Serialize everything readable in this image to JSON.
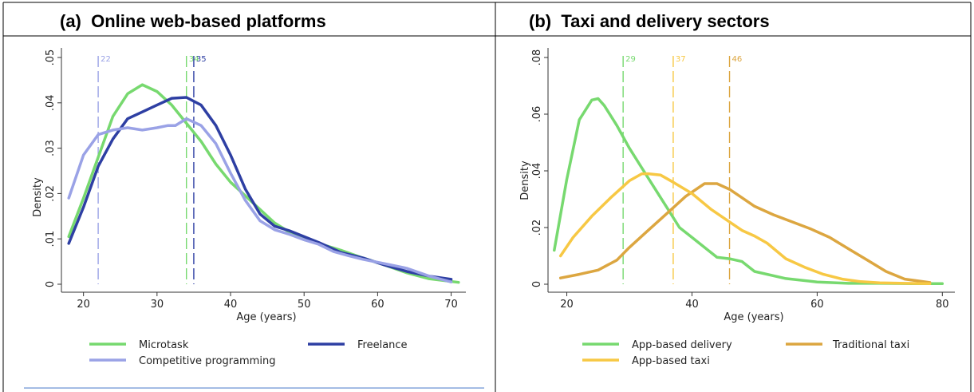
{
  "panels": [
    {
      "title": "(a)  Online web-based platforms"
    },
    {
      "title": "(b)  Taxi and delivery sectors"
    }
  ],
  "chart_data": [
    {
      "type": "line",
      "xlabel": "Age (years)",
      "ylabel": "Density",
      "xlim": [
        17,
        72
      ],
      "ylim": [
        0,
        0.05
      ],
      "xticks": [
        20,
        30,
        40,
        50,
        60,
        70
      ],
      "xtick_labels": [
        "20",
        "30",
        "40",
        "50",
        "60",
        "70"
      ],
      "yticks": [
        0,
        0.01,
        0.02,
        0.03,
        0.04,
        0.05
      ],
      "ytick_labels": [
        "0",
        ".01",
        ".02",
        ".03",
        ".04",
        ".05"
      ],
      "grid": false,
      "legend_position": "bottom",
      "series": [
        {
          "name": "Microtask",
          "color": "#77d96f",
          "x": [
            18,
            20,
            22,
            24,
            26,
            28,
            30,
            32,
            34,
            36,
            38,
            40,
            42,
            44,
            46,
            48,
            50,
            52,
            55,
            58,
            61,
            64,
            67,
            71
          ],
          "y": [
            0.0105,
            0.019,
            0.028,
            0.037,
            0.042,
            0.044,
            0.0425,
            0.0395,
            0.0355,
            0.0315,
            0.0265,
            0.0225,
            0.0195,
            0.0165,
            0.0135,
            0.0115,
            0.0098,
            0.009,
            0.0075,
            0.0058,
            0.0042,
            0.0025,
            0.0012,
            0.0004
          ]
        },
        {
          "name": "Freelance",
          "color": "#2e3fa3",
          "x": [
            18,
            20,
            22,
            24,
            26,
            28,
            30,
            32,
            34,
            36,
            38,
            40,
            42,
            44,
            46,
            48,
            50,
            52,
            55,
            58,
            61,
            64,
            67,
            70
          ],
          "y": [
            0.009,
            0.017,
            0.026,
            0.032,
            0.0365,
            0.038,
            0.0395,
            0.041,
            0.0412,
            0.0395,
            0.035,
            0.0285,
            0.021,
            0.0155,
            0.0128,
            0.0118,
            0.0105,
            0.0092,
            0.007,
            0.0058,
            0.0042,
            0.0028,
            0.0018,
            0.0011
          ]
        },
        {
          "name": "Competitive programming",
          "color": "#9aa2e6",
          "x": [
            18,
            20,
            22,
            24,
            26,
            28,
            30,
            31.5,
            32.5,
            34,
            36,
            38,
            40,
            42,
            44,
            46,
            48,
            50,
            52,
            54,
            56,
            58,
            61,
            64,
            67,
            70
          ],
          "y": [
            0.019,
            0.0285,
            0.033,
            0.034,
            0.0345,
            0.034,
            0.0345,
            0.035,
            0.035,
            0.0365,
            0.035,
            0.031,
            0.0245,
            0.0185,
            0.014,
            0.012,
            0.011,
            0.0098,
            0.0088,
            0.0072,
            0.0063,
            0.0055,
            0.0045,
            0.0035,
            0.0018,
            0.0005
          ]
        }
      ],
      "vlines": [
        {
          "x": 22,
          "label": "22",
          "color": "#9aa2e6"
        },
        {
          "x": 34,
          "label": "34",
          "color": "#77d96f"
        },
        {
          "x": 35,
          "label": "35",
          "color": "#2e3fa3"
        }
      ]
    },
    {
      "type": "line",
      "xlabel": "Age (years)",
      "ylabel": "Density",
      "xlim": [
        17,
        82
      ],
      "ylim": [
        0,
        0.08
      ],
      "xticks": [
        20,
        40,
        60,
        80
      ],
      "xtick_labels": [
        "20",
        "40",
        "60",
        "80"
      ],
      "yticks": [
        0,
        0.02,
        0.04,
        0.06,
        0.08
      ],
      "ytick_labels": [
        "0",
        ".02",
        ".04",
        ".06",
        ".08"
      ],
      "grid": false,
      "legend_position": "bottom",
      "series": [
        {
          "name": "App-based delivery",
          "color": "#77d96f",
          "x": [
            18,
            20,
            22,
            24,
            25,
            26,
            28,
            30,
            32,
            34,
            36,
            38,
            40,
            42,
            44,
            46,
            48,
            50,
            55,
            60,
            65,
            70,
            75,
            80
          ],
          "y": [
            0.012,
            0.037,
            0.058,
            0.065,
            0.0655,
            0.063,
            0.056,
            0.048,
            0.041,
            0.034,
            0.027,
            0.02,
            0.0165,
            0.013,
            0.0095,
            0.009,
            0.008,
            0.0045,
            0.002,
            0.0008,
            0.0003,
            0.0003,
            0.0002,
            0.0002
          ]
        },
        {
          "name": "Traditional taxi",
          "color": "#dca640",
          "x": [
            19,
            22,
            25,
            28,
            30,
            33,
            36,
            39,
            42,
            44,
            46,
            48,
            50,
            53,
            56,
            59,
            62,
            65,
            68,
            71,
            74,
            78
          ],
          "y": [
            0.0022,
            0.0035,
            0.005,
            0.0085,
            0.013,
            0.019,
            0.025,
            0.031,
            0.0355,
            0.0355,
            0.0335,
            0.0305,
            0.0275,
            0.0245,
            0.022,
            0.0195,
            0.0165,
            0.0125,
            0.0085,
            0.0045,
            0.0018,
            0.0006
          ]
        },
        {
          "name": "App-based taxi",
          "color": "#f7c844",
          "x": [
            19,
            21,
            24,
            27,
            30,
            32,
            33,
            35,
            37,
            40,
            43,
            46,
            48,
            50,
            52,
            55,
            58,
            61,
            64,
            67,
            70,
            74,
            78
          ],
          "y": [
            0.01,
            0.0165,
            0.024,
            0.0305,
            0.0365,
            0.039,
            0.039,
            0.0385,
            0.036,
            0.032,
            0.0265,
            0.022,
            0.019,
            0.017,
            0.0145,
            0.009,
            0.006,
            0.0035,
            0.0018,
            0.0009,
            0.0005,
            0.0003,
            0.0002
          ]
        }
      ],
      "vlines": [
        {
          "x": 29,
          "label": "29",
          "color": "#77d96f"
        },
        {
          "x": 37,
          "label": "37",
          "color": "#f7c844"
        },
        {
          "x": 46,
          "label": "46",
          "color": "#dca640"
        }
      ]
    }
  ]
}
